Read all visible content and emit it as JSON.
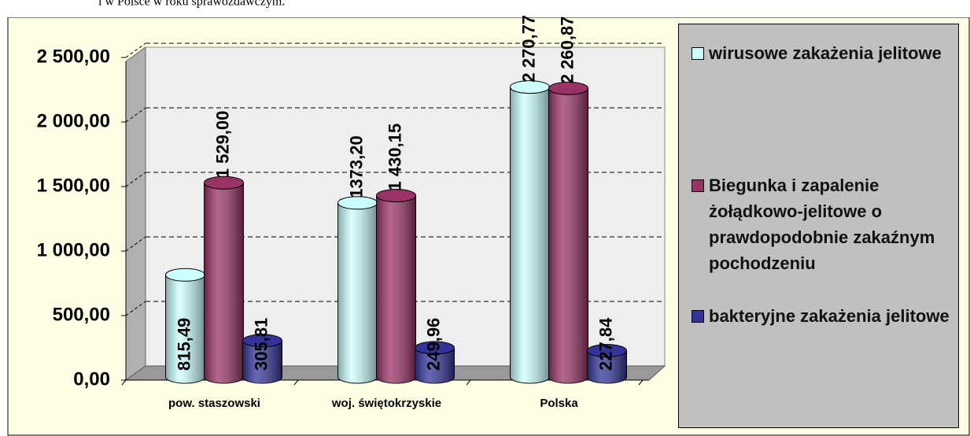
{
  "caption": "i w Polsce w roku sprawozdawczym.",
  "chart_data": {
    "type": "cylinder-bar",
    "categories": [
      "pow. staszowski",
      "woj. świętokrzyskie",
      "Polska"
    ],
    "series": [
      {
        "name": "wirusowe zakażenia jelitowe",
        "color": "#ccffff",
        "values": [
          815.49,
          1373.2,
          2270.77
        ],
        "value_labels": [
          "815,49",
          "1373,20",
          "2 270,77"
        ]
      },
      {
        "name": "Biegunka i zapalenie żołądkowo-jelitowe o prawdopodobnie zakaźnym pochodzeniu",
        "color": "#993366",
        "values": [
          1529.0,
          1430.15,
          2260.87
        ],
        "value_labels": [
          "1 529,00",
          "1 430,15",
          "2 260,87"
        ]
      },
      {
        "name": "bakteryjne zakażenia jelitowe",
        "color": "#333399",
        "values": [
          305.81,
          249.96,
          227.84
        ],
        "value_labels": [
          "305,81",
          "249,96",
          "227,84"
        ]
      }
    ],
    "ylim": [
      0,
      2500
    ],
    "yticks": [
      {
        "value": 0,
        "label": "0,00"
      },
      {
        "value": 500,
        "label": "500,00"
      },
      {
        "value": 1000,
        "label": "1 000,00"
      },
      {
        "value": 1500,
        "label": "1 500,00"
      },
      {
        "value": 2000,
        "label": "2 000,00"
      },
      {
        "value": 2500,
        "label": "2 500,00"
      }
    ],
    "grid": true,
    "legend": "right"
  }
}
